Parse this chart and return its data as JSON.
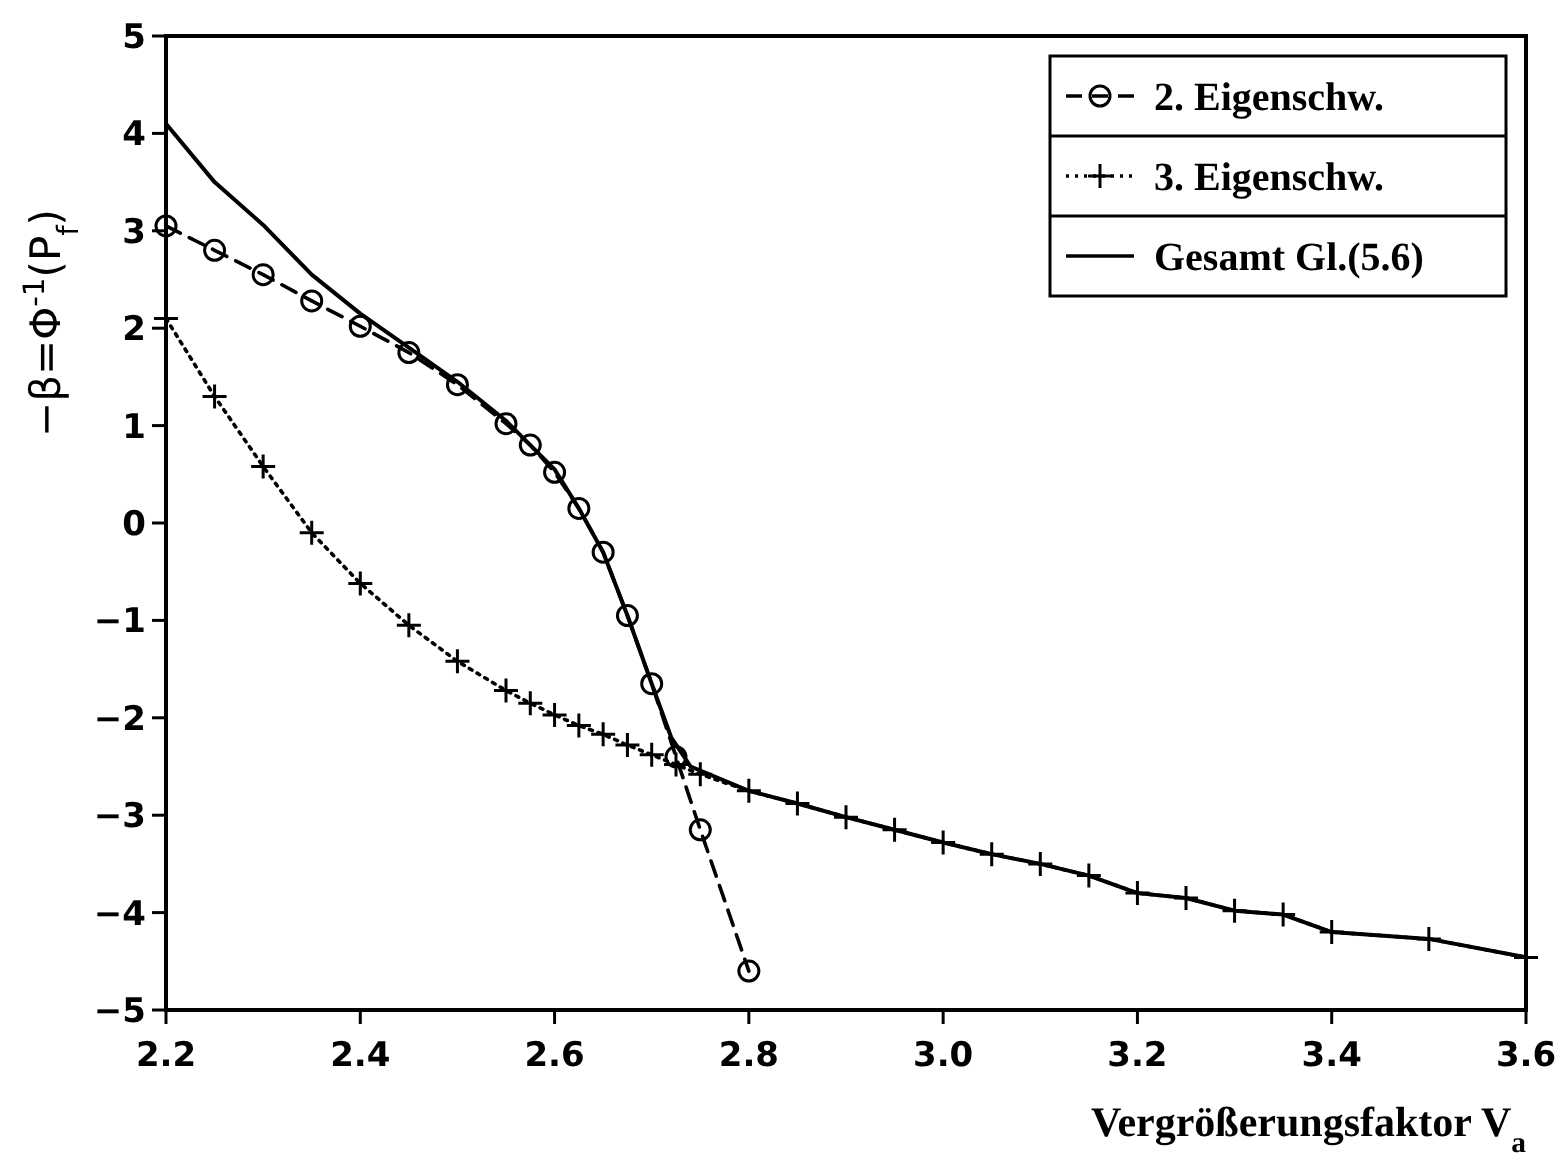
{
  "chart_data": {
    "type": "line",
    "xlabel": "Vergrößerungsfaktor V$_{a}$",
    "ylabel": "−β=Φ$^{-1}$(P$_{f}$)",
    "xlim": [
      2.2,
      3.6
    ],
    "ylim": [
      -5,
      5
    ],
    "xticks": [
      {
        "value": 2.2,
        "label": "2.2"
      },
      {
        "value": 2.4,
        "label": "2.4"
      },
      {
        "value": 2.6,
        "label": "2.6"
      },
      {
        "value": 2.8,
        "label": "2.8"
      },
      {
        "value": 3.0,
        "label": "3.0"
      },
      {
        "value": 3.2,
        "label": "3.2"
      },
      {
        "value": 3.4,
        "label": "3.4"
      },
      {
        "value": 3.6,
        "label": "3.6"
      }
    ],
    "yticks": [
      {
        "value": -5,
        "label": "−5"
      },
      {
        "value": -4,
        "label": "−4"
      },
      {
        "value": -3,
        "label": "−3"
      },
      {
        "value": -2,
        "label": "−2"
      },
      {
        "value": -1,
        "label": "−1"
      },
      0,
      1,
      2,
      3,
      4,
      5
    ],
    "grid": false,
    "legend": "top right",
    "series": [
      {
        "name": "2. Eigenschw.",
        "color": "#000000",
        "marker": "circle",
        "line_style": "dashed",
        "x": [
          2.2,
          2.25,
          2.3,
          2.35,
          2.4,
          2.45,
          2.5,
          2.55,
          2.575,
          2.6,
          2.625,
          2.65,
          2.675,
          2.7,
          2.725,
          2.75,
          2.8
        ],
        "values": [
          3.05,
          2.8,
          2.55,
          2.28,
          2.02,
          1.75,
          1.42,
          1.02,
          0.8,
          0.52,
          0.15,
          -0.3,
          -0.95,
          -1.65,
          -2.4,
          -3.15,
          -4.6
        ]
      },
      {
        "name": "3. Eigenschw.",
        "color": "#000000",
        "marker": "cross",
        "line_style": "dotted",
        "x": [
          2.2,
          2.25,
          2.3,
          2.35,
          2.4,
          2.45,
          2.5,
          2.55,
          2.575,
          2.6,
          2.625,
          2.65,
          2.675,
          2.7,
          2.725,
          2.75,
          2.8,
          2.85,
          2.9,
          2.95,
          3.0,
          3.05,
          3.1,
          3.15,
          3.2,
          3.25,
          3.3,
          3.35,
          3.4,
          3.5,
          3.6
        ],
        "values": [
          2.1,
          1.3,
          0.58,
          -0.1,
          -0.62,
          -1.05,
          -1.42,
          -1.72,
          -1.85,
          -1.97,
          -2.08,
          -2.17,
          -2.28,
          -2.38,
          -2.48,
          -2.58,
          -2.75,
          -2.88,
          -3.02,
          -3.15,
          -3.28,
          -3.4,
          -3.5,
          -3.62,
          -3.8,
          -3.85,
          -3.98,
          -4.02,
          -4.2,
          -4.27,
          -4.46
        ]
      },
      {
        "name": "Gesamt Gl.(5.6)",
        "color": "#000000",
        "marker": "none",
        "line_style": "solid",
        "x": [
          2.2,
          2.25,
          2.3,
          2.35,
          2.4,
          2.45,
          2.5,
          2.55,
          2.6,
          2.625,
          2.65,
          2.675,
          2.7,
          2.72,
          2.74,
          2.8,
          2.85,
          2.9,
          2.95,
          3.0,
          3.05,
          3.1,
          3.15,
          3.2,
          3.25,
          3.3,
          3.35,
          3.4,
          3.5,
          3.6
        ],
        "values": [
          4.1,
          3.5,
          3.06,
          2.55,
          2.15,
          1.8,
          1.45,
          1.05,
          0.55,
          0.15,
          -0.3,
          -0.95,
          -1.65,
          -2.2,
          -2.5,
          -2.75,
          -2.88,
          -3.02,
          -3.15,
          -3.28,
          -3.4,
          -3.5,
          -3.62,
          -3.8,
          -3.85,
          -3.98,
          -4.02,
          -4.2,
          -4.27,
          -4.46
        ]
      }
    ]
  }
}
